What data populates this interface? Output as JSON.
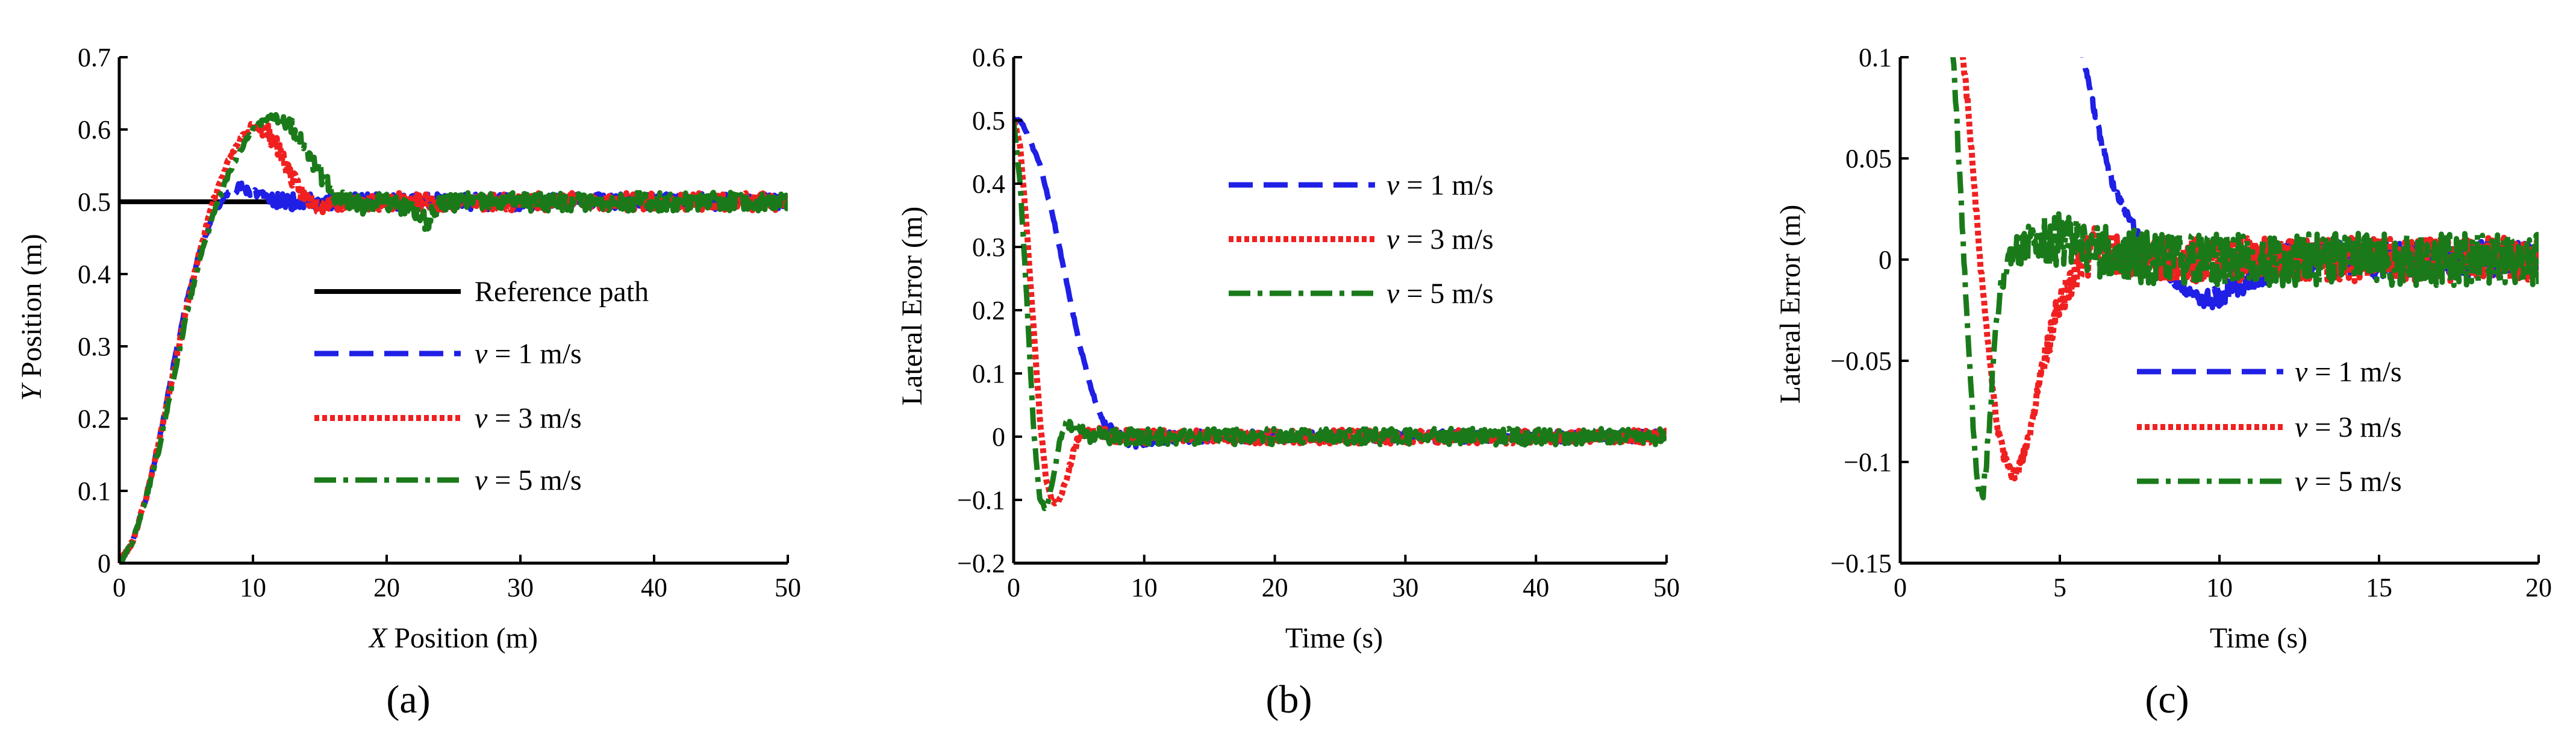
{
  "chart_data": [
    {
      "type": "line",
      "panel_label": "(a)",
      "xlabel_italic": "X",
      "xlabel_rest": " Position (m)",
      "ylabel_italic": "Y",
      "ylabel_rest": " Position (m)",
      "xlim": [
        0,
        50
      ],
      "ylim": [
        0,
        0.7
      ],
      "xticks": [
        0,
        10,
        20,
        30,
        40,
        50
      ],
      "xtick_labels": [
        "0",
        "10",
        "20",
        "30",
        "40",
        "50"
      ],
      "yticks": [
        0,
        0.1,
        0.2,
        0.3,
        0.4,
        0.5,
        0.6,
        0.7
      ],
      "ytick_labels": [
        "0",
        "0.1",
        "0.2",
        "0.3",
        "0.4",
        "0.5",
        "0.6",
        "0.7"
      ],
      "legend_position": "center-right",
      "series": [
        {
          "name": "Reference path",
          "legend_text": "Reference path",
          "color": "#000000",
          "style": "solid",
          "x": [
            0,
            50
          ],
          "y": [
            0.5,
            0.5
          ]
        },
        {
          "name": "v = 1 m/s",
          "legend_italic": "v",
          "legend_rest": " = 1 m/s",
          "color": "#1f1fe6",
          "style": "dashed",
          "noise": 0.011,
          "seed": 11,
          "x": [
            0,
            1,
            2,
            3,
            4,
            5,
            6,
            7,
            8,
            9,
            10,
            11,
            12,
            14,
            16,
            20,
            30,
            40,
            50
          ],
          "y": [
            0,
            0.03,
            0.09,
            0.17,
            0.27,
            0.36,
            0.43,
            0.48,
            0.51,
            0.52,
            0.515,
            0.505,
            0.5,
            0.5,
            0.5,
            0.5,
            0.5,
            0.5,
            0.5
          ]
        },
        {
          "name": "v = 3 m/s",
          "legend_italic": "v",
          "legend_rest": " = 3 m/s",
          "color": "#f02020",
          "style": "dotted",
          "noise": 0.012,
          "seed": 23,
          "x": [
            0,
            1,
            2,
            3,
            4,
            5,
            6,
            7,
            8,
            9,
            10,
            11,
            12,
            13,
            14,
            15,
            16,
            18,
            20,
            30,
            40,
            50
          ],
          "y": [
            0,
            0.03,
            0.09,
            0.17,
            0.26,
            0.35,
            0.43,
            0.5,
            0.55,
            0.585,
            0.605,
            0.6,
            0.57,
            0.53,
            0.505,
            0.495,
            0.5,
            0.5,
            0.5,
            0.5,
            0.5,
            0.5
          ]
        },
        {
          "name": "v = 5 m/s",
          "legend_italic": "v",
          "legend_rest": " = 5 m/s",
          "color": "#1a7a1a",
          "style": "dashdot",
          "noise": 0.013,
          "seed": 37,
          "x": [
            0,
            1,
            2,
            3,
            4,
            5,
            6,
            7,
            8,
            9,
            10,
            11,
            12,
            13,
            14,
            15,
            16,
            18,
            20,
            22,
            23,
            24,
            26,
            30,
            40,
            50
          ],
          "y": [
            0,
            0.03,
            0.09,
            0.16,
            0.25,
            0.34,
            0.42,
            0.48,
            0.53,
            0.57,
            0.6,
            0.615,
            0.615,
            0.6,
            0.57,
            0.54,
            0.51,
            0.495,
            0.5,
            0.49,
            0.47,
            0.5,
            0.5,
            0.5,
            0.5,
            0.5
          ]
        }
      ]
    },
    {
      "type": "line",
      "panel_label": "(b)",
      "xlabel": "Time (s)",
      "ylabel": "Lateral Error (m)",
      "xlim": [
        0,
        50
      ],
      "ylim": [
        -0.2,
        0.6
      ],
      "xticks": [
        0,
        10,
        20,
        30,
        40,
        50
      ],
      "xtick_labels": [
        "0",
        "10",
        "20",
        "30",
        "40",
        "50"
      ],
      "yticks": [
        -0.2,
        -0.1,
        0,
        0.1,
        0.2,
        0.3,
        0.4,
        0.5,
        0.6
      ],
      "ytick_labels": [
        "−0.2",
        "−0.1",
        "0",
        "0.1",
        "0.2",
        "0.3",
        "0.4",
        "0.5",
        "0.6"
      ],
      "legend_position": "top-right",
      "series": [
        {
          "name": "v = 1 m/s",
          "legend_italic": "v",
          "legend_rest": " = 1 m/s",
          "color": "#1f1fe6",
          "style": "dashed",
          "noise": 0.009,
          "seed": 51,
          "x": [
            0,
            0.5,
            1,
            2,
            3,
            4,
            5,
            6,
            7,
            8,
            9,
            10,
            12,
            20,
            30,
            40,
            50
          ],
          "y": [
            0.5,
            0.5,
            0.48,
            0.43,
            0.35,
            0.25,
            0.15,
            0.07,
            0.02,
            0,
            -0.01,
            -0.005,
            0,
            0,
            0,
            0,
            0
          ]
        },
        {
          "name": "v = 3 m/s",
          "legend_italic": "v",
          "legend_rest": " = 3 m/s",
          "color": "#f02020",
          "style": "dotted",
          "noise": 0.011,
          "seed": 63,
          "x": [
            0,
            0.5,
            1,
            1.5,
            2,
            2.5,
            3,
            3.5,
            4,
            4.5,
            5,
            6,
            8,
            10,
            20,
            30,
            40,
            50
          ],
          "y": [
            0.5,
            0.46,
            0.33,
            0.18,
            0.03,
            -0.07,
            -0.105,
            -0.1,
            -0.07,
            -0.03,
            0,
            0.005,
            0,
            0,
            0,
            0,
            0,
            0
          ]
        },
        {
          "name": "v = 5 m/s",
          "legend_italic": "v",
          "legend_rest": " = 5 m/s",
          "color": "#1a7a1a",
          "style": "dashdot",
          "noise": 0.013,
          "seed": 77,
          "x": [
            0,
            0.5,
            1,
            1.5,
            2,
            2.5,
            3,
            3.5,
            4,
            5,
            6,
            8,
            10,
            20,
            30,
            40,
            50
          ],
          "y": [
            0.5,
            0.4,
            0.22,
            0.02,
            -0.1,
            -0.115,
            -0.07,
            -0.01,
            0.02,
            0.01,
            0,
            0,
            0,
            0,
            0,
            0,
            0
          ]
        }
      ]
    },
    {
      "type": "line",
      "panel_label": "(c)",
      "xlabel": "Time (s)",
      "ylabel": "Lateral Error (m)",
      "xlim": [
        0,
        20
      ],
      "ylim": [
        -0.15,
        0.1
      ],
      "xticks": [
        0,
        5,
        10,
        15,
        20
      ],
      "xtick_labels": [
        "0",
        "5",
        "10",
        "15",
        "20"
      ],
      "yticks": [
        -0.15,
        -0.1,
        -0.05,
        0,
        0.05,
        0.1
      ],
      "ytick_labels": [
        "−0.15",
        "−0.1",
        "−0.05",
        "0",
        "0.05",
        "0.1"
      ],
      "legend_position": "bottom-right",
      "series": [
        {
          "name": "v = 1 m/s",
          "legend_italic": "v",
          "legend_rest": " = 1 m/s",
          "color": "#1f1fe6",
          "style": "dashed",
          "noise": 0.009,
          "seed": 91,
          "x": [
            5.4,
            5.8,
            6.2,
            6.6,
            7,
            7.5,
            8,
            8.5,
            9,
            9.5,
            10,
            10.5,
            11,
            12,
            14,
            16,
            18,
            20
          ],
          "y": [
            0.12,
            0.095,
            0.065,
            0.04,
            0.025,
            0.012,
            0,
            -0.01,
            -0.016,
            -0.02,
            -0.018,
            -0.012,
            -0.006,
            0,
            0,
            0,
            0,
            0
          ]
        },
        {
          "name": "v = 3 m/s",
          "legend_italic": "v",
          "legend_rest": " = 3 m/s",
          "color": "#f02020",
          "style": "dotted",
          "noise": 0.011,
          "seed": 103,
          "x": [
            1.9,
            2.1,
            2.3,
            2.5,
            2.7,
            2.9,
            3.1,
            3.3,
            3.5,
            3.7,
            3.9,
            4.2,
            4.5,
            5,
            5.5,
            6,
            7,
            8,
            10,
            15,
            20
          ],
          "y": [
            0.11,
            0.08,
            0.04,
            0.0,
            -0.035,
            -0.065,
            -0.088,
            -0.1,
            -0.107,
            -0.104,
            -0.095,
            -0.075,
            -0.05,
            -0.02,
            -0.005,
            0.005,
            0.002,
            0,
            0,
            0,
            0
          ]
        },
        {
          "name": "v = 5 m/s",
          "legend_italic": "v",
          "legend_rest": " = 5 m/s",
          "color": "#1a7a1a",
          "style": "dashdot",
          "noise": 0.013,
          "seed": 117,
          "x": [
            1.6,
            1.7,
            1.8,
            1.9,
            2.0,
            2.1,
            2.2,
            2.3,
            2.4,
            2.5,
            2.6,
            2.7,
            2.8,
            2.9,
            3.0,
            3.2,
            3.5,
            4,
            5,
            6,
            8,
            10,
            15,
            20
          ],
          "y": [
            0.105,
            0.09,
            0.06,
            0.03,
            0.0,
            -0.03,
            -0.06,
            -0.085,
            -0.105,
            -0.117,
            -0.115,
            -0.1,
            -0.08,
            -0.055,
            -0.035,
            -0.01,
            0.005,
            0.008,
            0.01,
            0.005,
            0,
            0,
            0,
            0
          ]
        }
      ]
    }
  ]
}
